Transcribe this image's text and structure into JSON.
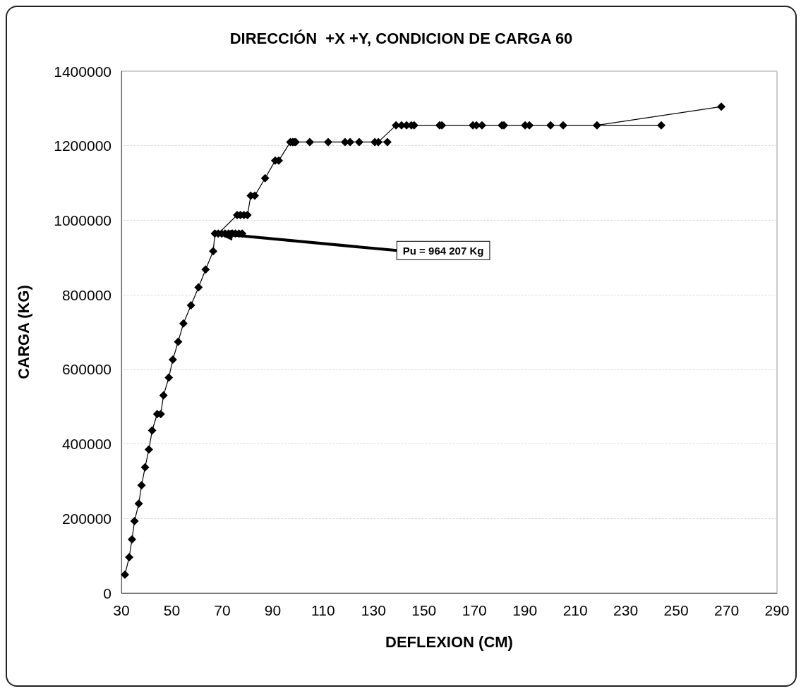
{
  "chart_data": {
    "type": "line",
    "title": "DIRECCIÓN  +X +Y, CONDICION DE CARGA 60",
    "xlabel": "DEFLEXION (CM)",
    "ylabel": "CARGA (KG)",
    "x": [
      31.4,
      33.1,
      34.2,
      35.2,
      36.9,
      38.0,
      39.4,
      40.9,
      42.2,
      44.2,
      45.6,
      46.7,
      48.8,
      50.4,
      52.5,
      54.6,
      57.6,
      60.6,
      63.4,
      66.4,
      67.1,
      77.9,
      76.6,
      75.2,
      73.9,
      72.5,
      71.1,
      69.8,
      68.4,
      75.9,
      77.2,
      78.6,
      80.0,
      81.3,
      82.9,
      87.0,
      91.0,
      92.4,
      97.0,
      97.9,
      98.5,
      99.1,
      104.7,
      112.0,
      118.7,
      120.7,
      124.3,
      130.5,
      135.5,
      131.9,
      138.9,
      141.1,
      143.1,
      145.0,
      146.1,
      156.2,
      157.1,
      169.4,
      170.8,
      173.0,
      180.9,
      181.7,
      190.1,
      191.8,
      200.2,
      205.2,
      244.1,
      218.6,
      267.9
    ],
    "values": [
      49000,
      96000,
      144000,
      193000,
      240000,
      289000,
      337000,
      385000,
      436000,
      480000,
      480000,
      530000,
      578000,
      626000,
      674000,
      723000,
      772000,
      820000,
      868000,
      917000,
      964207,
      964207,
      964207,
      964207,
      964207,
      964207,
      964207,
      964207,
      964207,
      1014000,
      1014000,
      1014000,
      1014000,
      1066000,
      1066000,
      1113000,
      1160000,
      1160000,
      1210000,
      1210000,
      1210000,
      1210000,
      1210000,
      1210000,
      1210000,
      1210000,
      1210000,
      1210000,
      1210000,
      1210000,
      1255000,
      1255000,
      1255000,
      1255000,
      1255000,
      1255000,
      1255000,
      1255000,
      1255000,
      1255000,
      1255000,
      1255000,
      1255000,
      1255000,
      1255000,
      1255000,
      1255000,
      1255000,
      1305000
    ],
    "color": "#000000",
    "marker": "diamond",
    "line_style": "solid",
    "xlim": [
      30,
      290
    ],
    "xticks": [
      30,
      50,
      70,
      90,
      110,
      130,
      150,
      170,
      190,
      210,
      230,
      250,
      270,
      290
    ],
    "ylim": [
      0,
      1400000
    ],
    "yticks": [
      0,
      200000,
      400000,
      600000,
      800000,
      1000000,
      1200000,
      1400000
    ],
    "grid": "y",
    "annotations": [
      {
        "text": "Pu = 964 207 Kg",
        "x": 68,
        "y": 964207
      }
    ]
  }
}
